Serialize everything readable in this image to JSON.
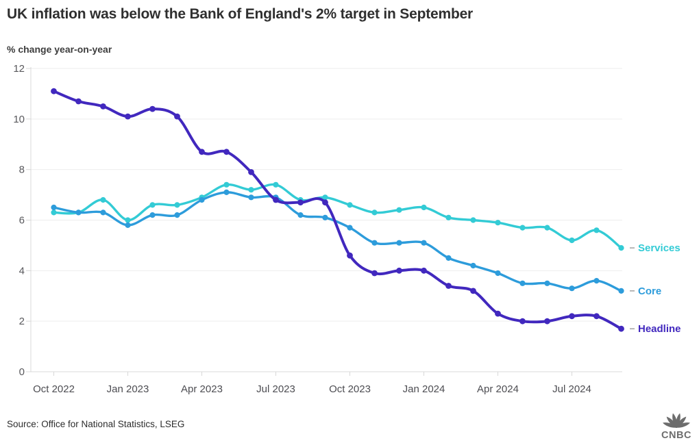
{
  "header": {
    "title": "UK inflation was below the Bank of England's 2% target in September",
    "subtitle": "% change year-on-year"
  },
  "footer": {
    "source": "Source: Office for National Statistics, LSEG",
    "logo_text": "CNBC"
  },
  "colors": {
    "headline": "#4128BE",
    "core": "#2D9CDB",
    "services": "#33CBD5",
    "grid": "#ededed",
    "axis": "#d8d8d8",
    "tick_label": "#58585c",
    "legend_dash": "#a0a0a0"
  },
  "chart_data": {
    "type": "line",
    "title": "UK inflation was below the Bank of England's 2% target in September",
    "ylabel": "% change year-on-year",
    "grid": "horizontal",
    "legend_position": "right of line ends",
    "ylim": [
      0,
      12
    ],
    "y_ticks": [
      0,
      2,
      4,
      6,
      8,
      10,
      12
    ],
    "x": [
      "Oct 2022",
      "Nov 2022",
      "Dec 2022",
      "Jan 2023",
      "Feb 2023",
      "Mar 2023",
      "Apr 2023",
      "May 2023",
      "Jun 2023",
      "Jul 2023",
      "Aug 2023",
      "Sep 2023",
      "Oct 2023",
      "Nov 2023",
      "Dec 2023",
      "Jan 2024",
      "Feb 2024",
      "Mar 2024",
      "Apr 2024",
      "May 2024",
      "Jun 2024",
      "Jul 2024",
      "Aug 2024",
      "Sep 2024"
    ],
    "x_tick_labels": [
      "Oct 2022",
      "Jan 2023",
      "Apr 2023",
      "Jul 2023",
      "Oct 2023",
      "Jan 2024",
      "Apr 2024",
      "Jul 2024"
    ],
    "series": [
      {
        "name": "Headline",
        "color": "#4128BE",
        "values": [
          11.1,
          10.7,
          10.5,
          10.1,
          10.4,
          10.1,
          8.7,
          8.7,
          7.9,
          6.8,
          6.7,
          6.7,
          4.6,
          3.9,
          4.0,
          4.0,
          3.4,
          3.2,
          2.3,
          2.0,
          2.0,
          2.2,
          2.2,
          1.7
        ]
      },
      {
        "name": "Core",
        "color": "#2D9CDB",
        "values": [
          6.5,
          6.3,
          6.3,
          5.8,
          6.2,
          6.2,
          6.8,
          7.1,
          6.9,
          6.9,
          6.2,
          6.1,
          5.7,
          5.1,
          5.1,
          5.1,
          4.5,
          4.2,
          3.9,
          3.5,
          3.5,
          3.3,
          3.6,
          3.2
        ]
      },
      {
        "name": "Services",
        "color": "#33CBD5",
        "values": [
          6.3,
          6.3,
          6.8,
          6.0,
          6.6,
          6.6,
          6.9,
          7.4,
          7.2,
          7.4,
          6.8,
          6.9,
          6.6,
          6.3,
          6.4,
          6.5,
          6.1,
          6.0,
          5.9,
          5.7,
          5.7,
          5.2,
          5.6,
          4.9
        ]
      }
    ]
  }
}
